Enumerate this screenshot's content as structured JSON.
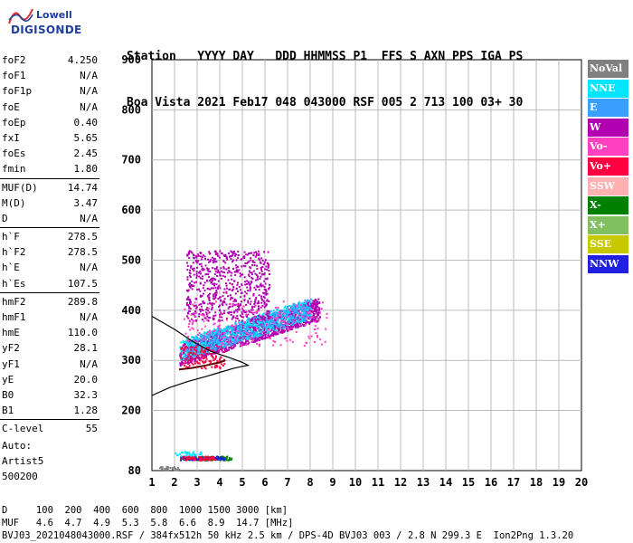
{
  "logo": {
    "brand": "Lowell",
    "product": "DIGISONDE"
  },
  "header": {
    "columns": [
      "Station",
      "YYYY DAY",
      "DDD HHMMSS",
      "P1",
      "FFS",
      "S",
      "AXN",
      "PPS",
      "IGA",
      "PS"
    ],
    "values": [
      "Boa Vista",
      "2021 Feb17",
      "048 043000",
      "RSF",
      "005",
      "2",
      "713",
      "100",
      "03+",
      "30"
    ],
    "line1": "Station   YYYY DAY   DDD HHMMSS P1  FFS S AXN PPS IGA PS",
    "line2": "Boa Vista 2021 Feb17 048 043000 RSF 005 2 713 100 03+ 30"
  },
  "parameters": [
    {
      "group": [
        {
          "label": "foF2",
          "value": "4.250"
        },
        {
          "label": "foF1",
          "value": "N/A"
        },
        {
          "label": "foF1p",
          "value": "N/A"
        },
        {
          "label": "foE",
          "value": "N/A"
        },
        {
          "label": "foEp",
          "value": "0.40"
        },
        {
          "label": "fxI",
          "value": "5.65"
        },
        {
          "label": "foEs",
          "value": "2.45"
        },
        {
          "label": "fmin",
          "value": "1.80"
        }
      ]
    },
    {
      "group": [
        {
          "label": "MUF(D)",
          "value": "14.74"
        },
        {
          "label": "M(D)",
          "value": "3.47"
        },
        {
          "label": "D",
          "value": "N/A"
        }
      ]
    },
    {
      "group": [
        {
          "label": "h`F",
          "value": "278.5"
        },
        {
          "label": "h`F2",
          "value": "278.5"
        },
        {
          "label": "h`E",
          "value": "N/A"
        },
        {
          "label": "h`Es",
          "value": "107.5"
        }
      ]
    },
    {
      "group": [
        {
          "label": "hmF2",
          "value": "289.8"
        },
        {
          "label": "hmF1",
          "value": "N/A"
        },
        {
          "label": "hmE",
          "value": "110.0"
        },
        {
          "label": "yF2",
          "value": "28.1"
        },
        {
          "label": "yF1",
          "value": "N/A"
        },
        {
          "label": "yE",
          "value": "20.0"
        },
        {
          "label": "B0",
          "value": "32.3"
        },
        {
          "label": "B1",
          "value": "1.28"
        }
      ]
    },
    {
      "group": [
        {
          "label": "C-level",
          "value": "55"
        }
      ]
    }
  ],
  "auto": {
    "line1": "Auto:",
    "line2": "Artist5",
    "line3": "500200"
  },
  "legend": [
    {
      "label": "NoVal",
      "bg": "#808080",
      "fg": "#ffffff"
    },
    {
      "label": "NNE",
      "bg": "#00e5ff",
      "fg": "#ffffff"
    },
    {
      "label": "E",
      "bg": "#3aa0ff",
      "fg": "#ffffff"
    },
    {
      "label": "W",
      "bg": "#b000b0",
      "fg": "#ffffff"
    },
    {
      "label": "Vo-",
      "bg": "#ff40c0",
      "fg": "#ffffff"
    },
    {
      "label": "Vo+",
      "bg": "#ff0040",
      "fg": "#ffffff"
    },
    {
      "label": "SSW",
      "bg": "#ffb0b0",
      "fg": "#ffffff"
    },
    {
      "label": "X-",
      "bg": "#008000",
      "fg": "#ffffff"
    },
    {
      "label": "X+",
      "bg": "#80c060",
      "fg": "#ffffff"
    },
    {
      "label": "SSE",
      "bg": "#c8c800",
      "fg": "#ffffff"
    },
    {
      "label": "NNW",
      "bg": "#2020e0",
      "fg": "#ffffff"
    }
  ],
  "footer": {
    "line1": "D     100  200  400  600  800  1000 1500 3000 [km]",
    "line2": "MUF   4.6  4.7  4.9  5.3  5.8  6.6  8.9  14.7 [MHz]",
    "line3": "BVJ03_2021048043000.RSF / 384fx512h 50 kHz 2.5 km / DPS-4D BVJ03 003 / 2.8 N 299.3 E  Ion2Png 1.3.20"
  },
  "chart_data": {
    "type": "scatter",
    "xlim": [
      1,
      20
    ],
    "ylim": [
      80,
      900
    ],
    "xticks": [
      1,
      2,
      3,
      4,
      5,
      6,
      7,
      8,
      9,
      10,
      11,
      12,
      13,
      14,
      15,
      16,
      17,
      18,
      19,
      20
    ],
    "yticks": [
      80,
      200,
      300,
      400,
      500,
      600,
      700,
      800,
      900
    ],
    "grid": true,
    "clusters": [
      {
        "name": "W",
        "color": "#b000b0",
        "x_range": [
          2.2,
          8.4
        ],
        "y_range": [
          290,
          420
        ],
        "slope_trace": true,
        "count": 1400
      },
      {
        "name": "NNE",
        "color": "#00e5ff",
        "x_range": [
          2.2,
          8.0
        ],
        "y_range": [
          300,
          420
        ],
        "slope_trace": true,
        "count": 600
      },
      {
        "name": "E",
        "color": "#3aa0ff",
        "x_range": [
          2.4,
          8.0
        ],
        "y_range": [
          300,
          420
        ],
        "slope_trace": true,
        "count": 400
      },
      {
        "name": "W",
        "color": "#b000b0",
        "x_range": [
          2.5,
          6.2
        ],
        "y_range": [
          380,
          520
        ],
        "slope_trace": false,
        "count": 700
      },
      {
        "name": "Vo+",
        "color": "#ff0040",
        "x_range": [
          2.2,
          4.2
        ],
        "y_range": [
          285,
          330
        ],
        "slope_trace": false,
        "count": 120
      },
      {
        "name": "Vo-",
        "color": "#ff40c0",
        "x_range": [
          2.4,
          8.8
        ],
        "y_range": [
          330,
          420
        ],
        "slope_trace": false,
        "count": 180
      },
      {
        "name": "X-",
        "color": "#008000",
        "x_range": [
          2.2,
          4.5
        ],
        "y_range": [
          102,
          110
        ],
        "slope_trace": false,
        "count": 120
      },
      {
        "name": "NNW",
        "color": "#2020e0",
        "x_range": [
          2.2,
          4.2
        ],
        "y_range": [
          102,
          110
        ],
        "slope_trace": false,
        "count": 60
      },
      {
        "name": "Vo+",
        "color": "#ff0040",
        "x_range": [
          2.3,
          3.8
        ],
        "y_range": [
          102,
          110
        ],
        "slope_trace": false,
        "count": 60
      },
      {
        "name": "NoVal",
        "color": "#808080",
        "x_range": [
          1.2,
          2.2
        ],
        "y_range": [
          82,
          90
        ],
        "slope_trace": false,
        "count": 30
      },
      {
        "name": "NNE",
        "color": "#00e5ff",
        "x_range": [
          2.0,
          3.2
        ],
        "y_range": [
          110,
          120
        ],
        "slope_trace": false,
        "count": 30
      }
    ],
    "profile_curve": [
      {
        "x": 0.0,
        "y": 230
      },
      {
        "x": 0.8,
        "y": 246
      },
      {
        "x": 1.6,
        "y": 258
      },
      {
        "x": 2.4,
        "y": 268
      },
      {
        "x": 3.0,
        "y": 276
      },
      {
        "x": 3.6,
        "y": 284
      },
      {
        "x": 4.0,
        "y": 288
      },
      {
        "x": 4.25,
        "y": 290
      },
      {
        "x": 4.0,
        "y": 296
      },
      {
        "x": 3.4,
        "y": 306
      },
      {
        "x": 2.6,
        "y": 318
      },
      {
        "x": 1.8,
        "y": 338
      },
      {
        "x": 1.0,
        "y": 362
      },
      {
        "x": 0.0,
        "y": 388
      }
    ],
    "trace_line": [
      {
        "x": 2.2,
        "y": 282
      },
      {
        "x": 2.8,
        "y": 285
      },
      {
        "x": 3.4,
        "y": 290
      },
      {
        "x": 4.0,
        "y": 296
      },
      {
        "x": 4.25,
        "y": 300
      }
    ]
  }
}
